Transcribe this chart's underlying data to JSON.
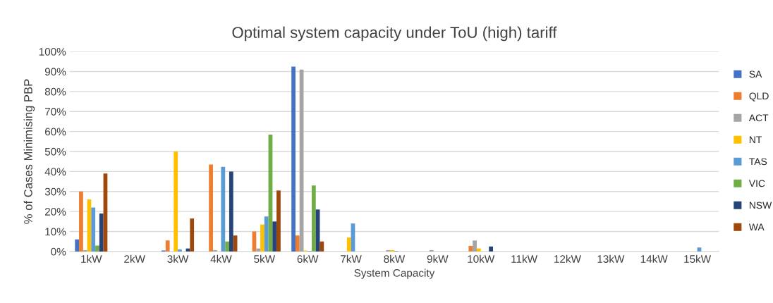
{
  "chart_data": {
    "type": "bar",
    "title": "Optimal system capacity under ToU (high) tariff",
    "xlabel": "System Capacity",
    "ylabel": "% of Cases Minimising PBP",
    "categories": [
      "1kW",
      "2kW",
      "3kW",
      "4kW",
      "5kW",
      "6kW",
      "7kW",
      "8kW",
      "9kW",
      "10kW",
      "11kW",
      "12kW",
      "13kW",
      "14kW",
      "15kW"
    ],
    "series": [
      {
        "name": "SA",
        "color": "#4472c4",
        "values": [
          6,
          0,
          0.5,
          0,
          0,
          92.5,
          0,
          0,
          0,
          0,
          0,
          0,
          0,
          0,
          0
        ]
      },
      {
        "name": "QLD",
        "color": "#ed7d31",
        "values": [
          30,
          0,
          5.5,
          43.5,
          10,
          8,
          0,
          0,
          0,
          2.8,
          0,
          0,
          0,
          0,
          0
        ]
      },
      {
        "name": "ACT",
        "color": "#a5a5a5",
        "values": [
          0.7,
          0,
          0,
          0.7,
          1.5,
          91,
          0,
          0.7,
          0.7,
          5.5,
          0,
          0,
          0,
          0,
          0
        ]
      },
      {
        "name": "NT",
        "color": "#ffc000",
        "values": [
          26,
          0,
          50,
          0,
          13.5,
          0.5,
          7,
          0.7,
          0,
          1.5,
          0,
          0,
          0,
          0,
          0
        ]
      },
      {
        "name": "TAS",
        "color": "#5b9bd5",
        "values": [
          22,
          0,
          1,
          42.3,
          17.5,
          0.3,
          14,
          0.3,
          0,
          0,
          0,
          0,
          0,
          0,
          2
        ]
      },
      {
        "name": "VIC",
        "color": "#70ad47",
        "values": [
          3,
          0,
          0,
          5,
          58.5,
          33,
          0,
          0,
          0,
          0,
          0,
          0,
          0,
          0,
          0
        ]
      },
      {
        "name": "NSW",
        "color": "#264478",
        "values": [
          19,
          0,
          1.5,
          40,
          15,
          21,
          0,
          0,
          0,
          2.5,
          0,
          0,
          0,
          0,
          0
        ]
      },
      {
        "name": "WA",
        "color": "#9e480e",
        "values": [
          39,
          0,
          16.5,
          8,
          30.5,
          5,
          0,
          0,
          0,
          0,
          0,
          0,
          0,
          0,
          0
        ]
      }
    ],
    "ylim": [
      0,
      100
    ],
    "yticks": [
      {
        "value": 0,
        "label": "0%"
      },
      {
        "value": 10,
        "label": "10%"
      },
      {
        "value": 20,
        "label": "20%"
      },
      {
        "value": 30,
        "label": "30%"
      },
      {
        "value": 40,
        "label": "40%"
      },
      {
        "value": 50,
        "label": "50%"
      },
      {
        "value": 60,
        "label": "60%"
      },
      {
        "value": 70,
        "label": "70%"
      },
      {
        "value": 80,
        "label": "80%"
      },
      {
        "value": 90,
        "label": "90%"
      },
      {
        "value": 100,
        "label": "100%"
      }
    ],
    "grid": "y",
    "legend": "right"
  }
}
